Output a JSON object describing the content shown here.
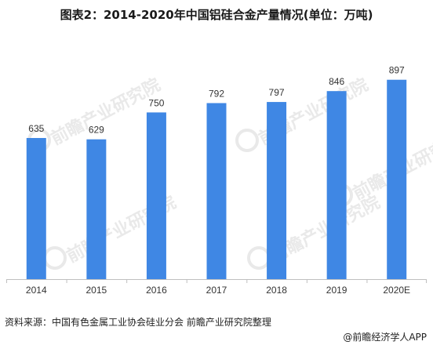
{
  "title": "图表2：2014-2020年中国铝硅合金产量情况(单位：万吨)",
  "source": "资料来源：中国有色金属工业协会硅业分会 前瞻产业研究院整理",
  "brand": "@前瞻经济学人APP",
  "watermark": "前瞻产业研究院",
  "colors": {
    "bar": "#3f87e4",
    "axis": "#bfbfbf",
    "text": "#333333"
  },
  "chart_data": {
    "type": "bar",
    "categories": [
      "2014",
      "2015",
      "2016",
      "2017",
      "2018",
      "2019",
      "2020E"
    ],
    "values": [
      635,
      629,
      750,
      792,
      797,
      846,
      897
    ],
    "ylim": [
      0,
      1150
    ],
    "grid": false,
    "data_labels": true
  }
}
